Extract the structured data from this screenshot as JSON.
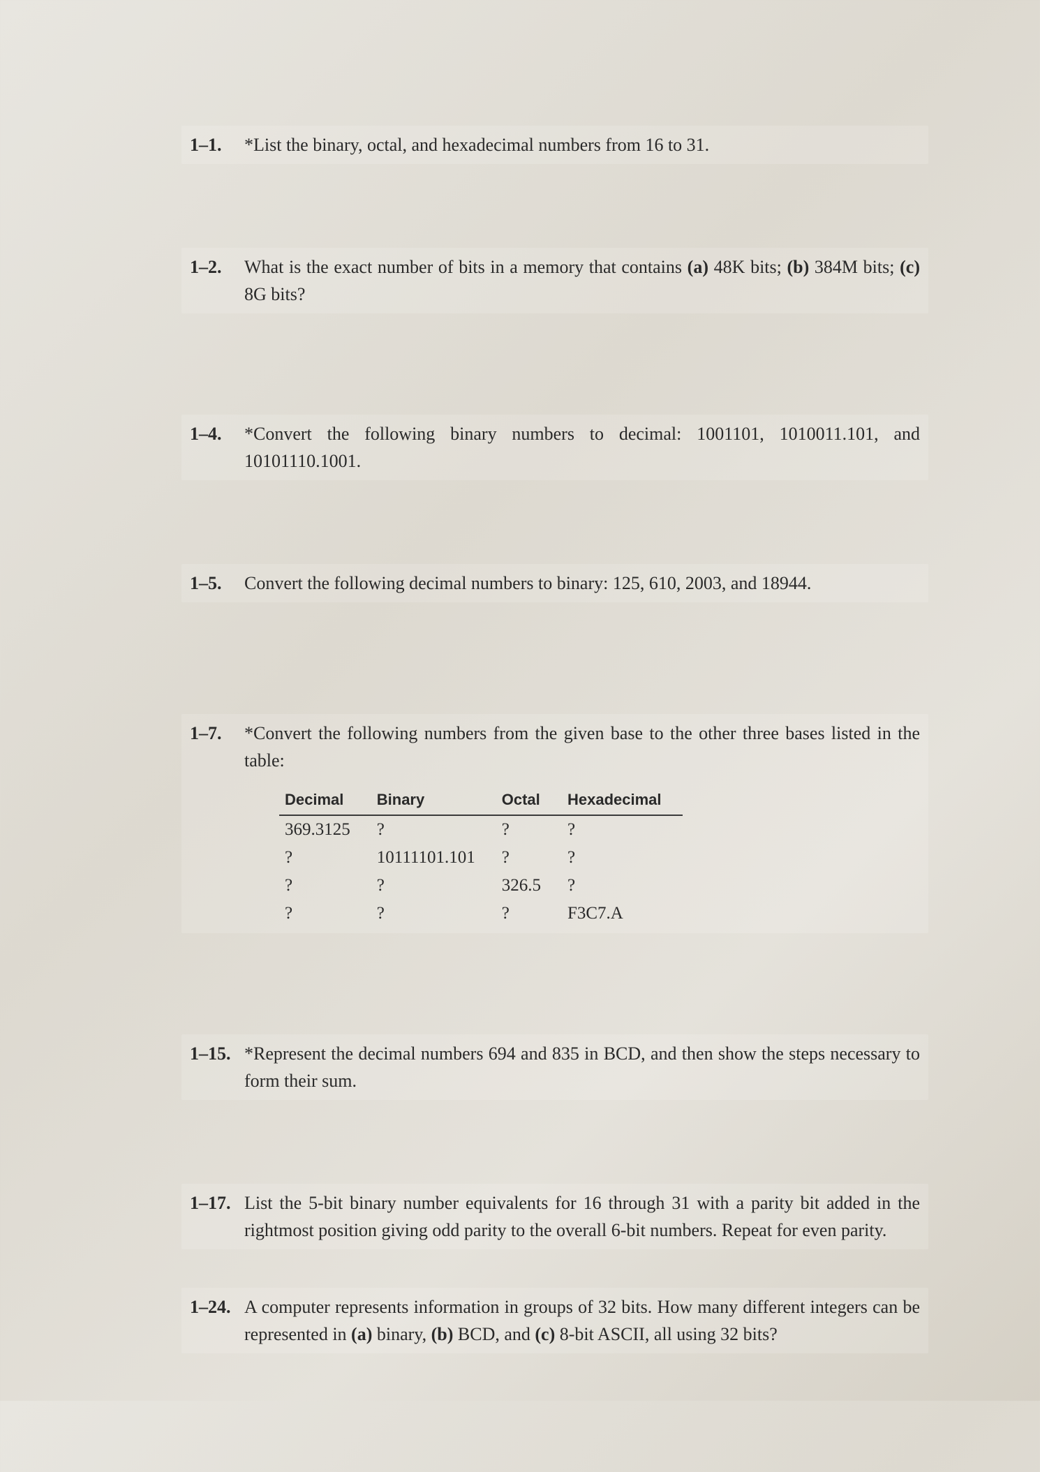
{
  "problems": [
    {
      "num": "1–1.",
      "html": "*List the binary, octal, and hexadecimal numbers from 16 to 31."
    },
    {
      "num": "1–2.",
      "html": "What is the exact number of bits in a memory that contains <b>(a)</b> 48K bits; <b>(b)</b> 384M bits; <b>(c)</b> 8G bits?"
    },
    {
      "num": "1–4.",
      "html": "*Convert the following binary numbers to decimal: 1001101, 1010011.101, and 10101110.1001."
    },
    {
      "num": "1–5.",
      "html": "Convert the following decimal numbers to binary: 125, 610, 2003, and 18944."
    },
    {
      "num": "1–7.",
      "html": "*Convert the following numbers from the given base to the other three bases listed in the table:"
    },
    {
      "num": "1–15.",
      "html": "*Represent the decimal numbers 694 and 835 in BCD, and then show the steps necessary to form their sum."
    },
    {
      "num": "1–17.",
      "html": "List the 5-bit binary number equivalents for 16 through 31 with a parity bit added in the rightmost position giving odd parity to the overall 6-bit numbers. Repeat for even parity."
    },
    {
      "num": "1–24.",
      "html": "A computer represents information in groups of 32 bits. How many different integers can be represented in <b>(a)</b> binary, <b>(b)</b> BCD, and <b>(c)</b> 8-bit ASCII, all using 32 bits?"
    }
  ],
  "table": {
    "columns": [
      "Decimal",
      "Binary",
      "Octal",
      "Hexadecimal"
    ],
    "rows": [
      [
        "369.3125",
        "?",
        "?",
        "?"
      ],
      [
        "?",
        "10111101.101",
        "?",
        "?"
      ],
      [
        "?",
        "?",
        "326.5",
        "?"
      ],
      [
        "?",
        "?",
        "?",
        "F3C7.A"
      ]
    ]
  },
  "style": {
    "background_gradient": [
      "#e8e6e0",
      "#ddd9d0",
      "#e5e2db",
      "#d5d0c5"
    ],
    "text_color": "#2a2a2a",
    "body_font": "Georgia, Times New Roman, serif",
    "table_header_font": "Arial, Helvetica, sans-serif",
    "body_fontsize": 26,
    "table_header_fontsize": 22,
    "table_cell_fontsize": 25,
    "header_border_color": "#3a3a3a",
    "header_border_width": 2
  }
}
